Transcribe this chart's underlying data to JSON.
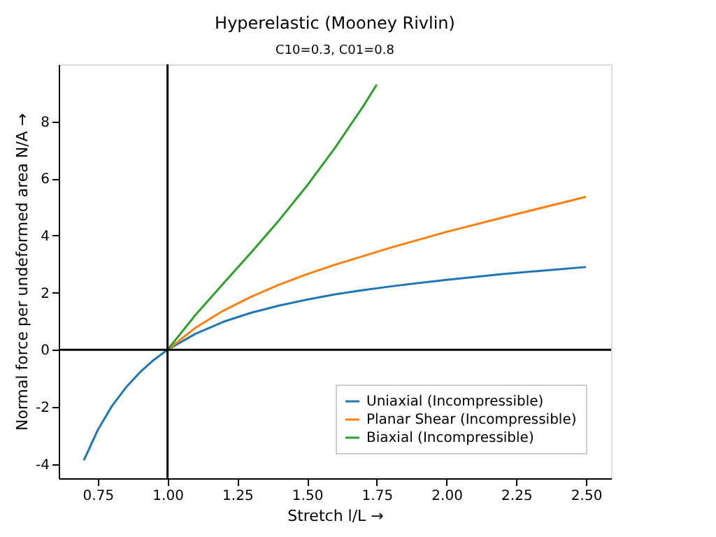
{
  "chart_data": {
    "type": "line",
    "title": "Hyperelastic (Mooney Rivlin)",
    "subtitle": "C10=0.3, C01=0.8",
    "xlabel": "Stretch l/L  →",
    "ylabel": "Normal force per undeformed area N/A  →",
    "series": [
      {
        "name": "Uniaxial (Incompressible)",
        "color": "#1f77b4",
        "x": [
          0.7,
          0.75,
          0.8,
          0.85,
          0.9,
          0.95,
          1.0,
          1.1,
          1.2,
          1.3,
          1.4,
          1.5,
          1.6,
          1.7,
          1.8,
          1.9,
          2.0,
          2.2,
          2.4,
          2.5
        ],
        "values": [
          -3.87,
          -2.81,
          -1.98,
          -1.33,
          -0.8,
          -0.36,
          0,
          0.56,
          0.98,
          1.3,
          1.55,
          1.76,
          1.94,
          2.09,
          2.22,
          2.34,
          2.45,
          2.65,
          2.82,
          2.9
        ]
      },
      {
        "name": "Planar Shear (Incompressible)",
        "color": "#ff7f0e",
        "x": [
          1.0,
          1.1,
          1.2,
          1.3,
          1.4,
          1.5,
          1.6,
          1.8,
          2.0,
          2.2,
          2.5
        ],
        "values": [
          0,
          0.77,
          1.37,
          1.86,
          2.28,
          2.65,
          2.98,
          3.58,
          4.13,
          4.63,
          5.36
        ]
      },
      {
        "name": "Biaxial (Incompressible)",
        "color": "#2ca02c",
        "x": [
          1.0,
          1.1,
          1.2,
          1.3,
          1.4,
          1.5,
          1.6,
          1.7,
          1.75
        ],
        "values": [
          0,
          1.22,
          2.32,
          3.41,
          4.54,
          5.75,
          7.07,
          8.51,
          9.29
        ]
      }
    ],
    "xlim": [
      0.61,
      2.59
    ],
    "ylim": [
      -4.5,
      10
    ],
    "xticks": [
      {
        "value": 0.75,
        "label": "0.75"
      },
      {
        "value": 1,
        "label": "1.00"
      },
      {
        "value": 1.25,
        "label": "1.25"
      },
      {
        "value": 1.5,
        "label": "1.50"
      },
      {
        "value": 1.75,
        "label": "1.75"
      },
      {
        "value": 2,
        "label": "2.00"
      },
      {
        "value": 2.25,
        "label": "2.25"
      },
      {
        "value": 2.5,
        "label": "2.50"
      }
    ],
    "yticks": [
      -4,
      -2,
      0,
      2,
      4,
      6,
      8
    ],
    "ref_lines": [
      {
        "axis": "x",
        "value": 1,
        "color": "#000000"
      },
      {
        "axis": "y",
        "value": 0,
        "color": "#000000"
      }
    ],
    "grid": false,
    "legend": "bottom right",
    "marker": "none",
    "line_style": "solid"
  }
}
